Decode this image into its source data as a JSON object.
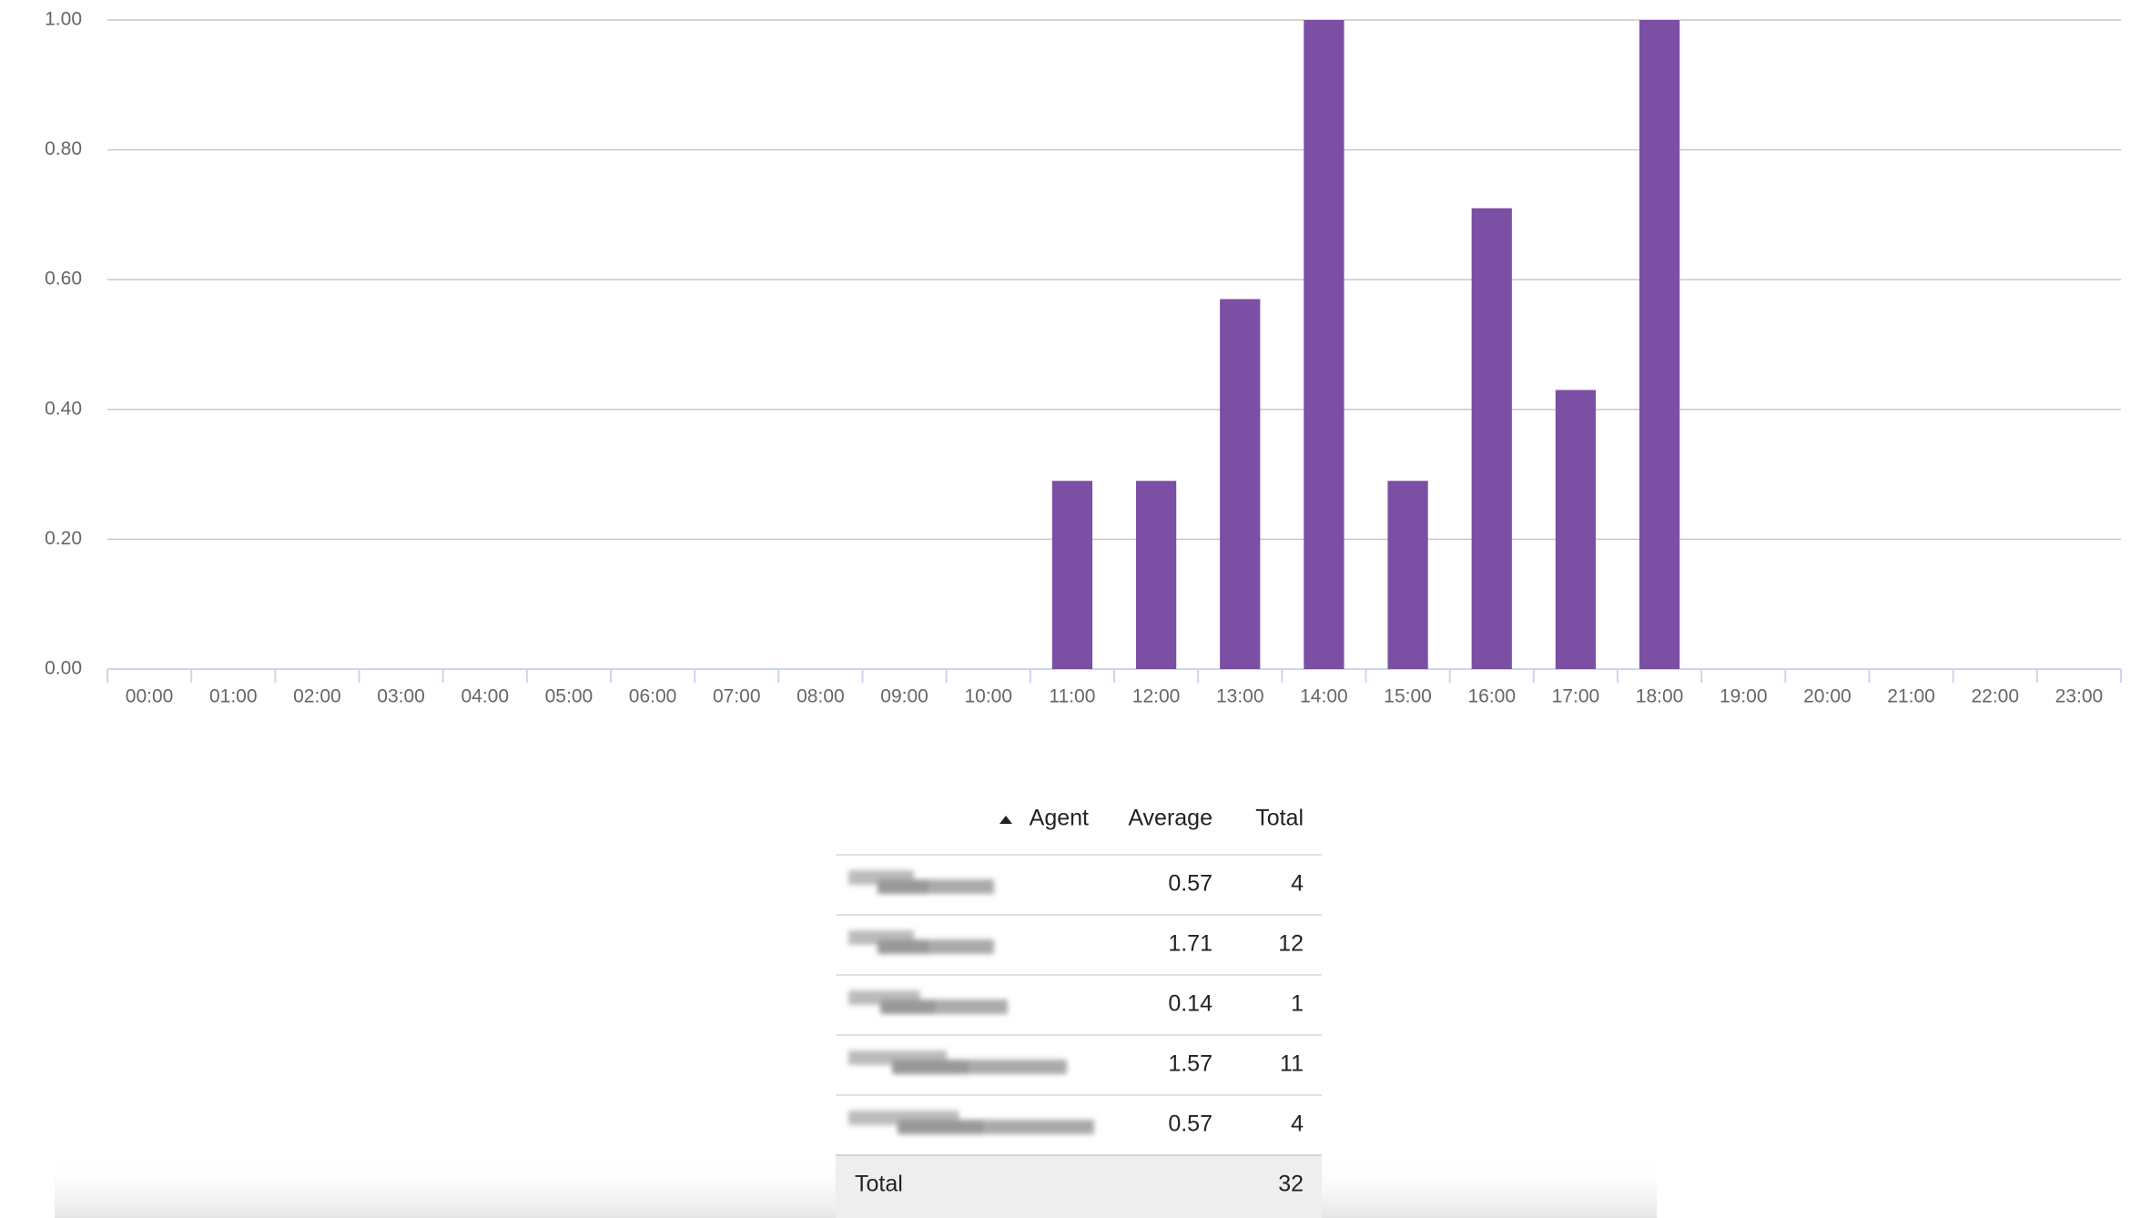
{
  "chart_data": {
    "type": "bar",
    "categories": [
      "00:00",
      "01:00",
      "02:00",
      "03:00",
      "04:00",
      "05:00",
      "06:00",
      "07:00",
      "08:00",
      "09:00",
      "10:00",
      "11:00",
      "12:00",
      "13:00",
      "14:00",
      "15:00",
      "16:00",
      "17:00",
      "18:00",
      "19:00",
      "20:00",
      "21:00",
      "22:00",
      "23:00"
    ],
    "values": [
      0,
      0,
      0,
      0,
      0,
      0,
      0,
      0,
      0,
      0,
      0,
      0.29,
      0.29,
      0.57,
      1.0,
      0.29,
      0.71,
      0.43,
      1.0,
      0,
      0,
      0,
      0,
      0
    ],
    "color": "#7b4fa3",
    "ylim": [
      0,
      1
    ],
    "yticks": [
      {
        "value": 0,
        "label": "0.00"
      },
      {
        "value": 0.2,
        "label": "0.20"
      },
      {
        "value": 0.4,
        "label": "0.40"
      },
      {
        "value": 0.6,
        "label": "0.60"
      },
      {
        "value": 0.8,
        "label": "0.80"
      },
      {
        "value": 1,
        "label": "1.00"
      }
    ],
    "grid": true
  },
  "table": {
    "columns": [
      "Agent",
      "Average",
      "Total"
    ],
    "rows": [
      {
        "average": 0.57,
        "total": 4
      },
      {
        "average": 1.71,
        "total": 12
      },
      {
        "average": 0.14,
        "total": 1
      },
      {
        "average": 1.57,
        "total": 11
      },
      {
        "average": 0.57,
        "total": 4
      }
    ],
    "footer": {
      "label": "Total",
      "total": 32
    }
  }
}
